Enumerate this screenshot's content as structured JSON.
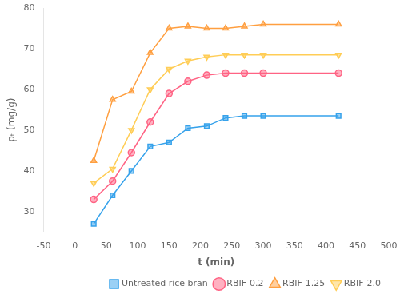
{
  "chart_data": {
    "type": "line",
    "xlabel": "t (min)",
    "ylabel": "pₜ (mg/g)",
    "x": [
      30,
      60,
      90,
      120,
      150,
      180,
      210,
      240,
      270,
      300,
      420
    ],
    "series": [
      {
        "name": "Untreated rice bran",
        "marker": "square",
        "values": [
          27,
          34,
          40,
          46,
          47,
          50.5,
          51,
          53,
          53.5,
          53.5,
          53.5
        ]
      },
      {
        "name": "RBIF-0.2",
        "marker": "circle",
        "values": [
          33,
          37.5,
          44.5,
          52,
          59,
          62,
          63.5,
          64,
          64,
          64,
          64
        ]
      },
      {
        "name": "RBIF-1.25",
        "marker": "triangle",
        "values": [
          42.5,
          57.5,
          59.5,
          69,
          75,
          75.5,
          75,
          75,
          75.5,
          76,
          76
        ]
      },
      {
        "name": "RBIF-2.0",
        "marker": "triangle-down",
        "values": [
          37,
          40.5,
          50,
          60,
          65,
          67,
          68,
          68.5,
          68.5,
          68.5,
          68.5
        ]
      }
    ],
    "xlim": [
      -50,
      500
    ],
    "ylim": [
      25,
      80
    ],
    "xticks": [
      -50,
      0,
      50,
      100,
      150,
      200,
      250,
      300,
      350,
      400,
      450,
      500
    ],
    "yticks": [
      30,
      40,
      50,
      60,
      70,
      80
    ],
    "grid": false,
    "legend": "lower right"
  }
}
